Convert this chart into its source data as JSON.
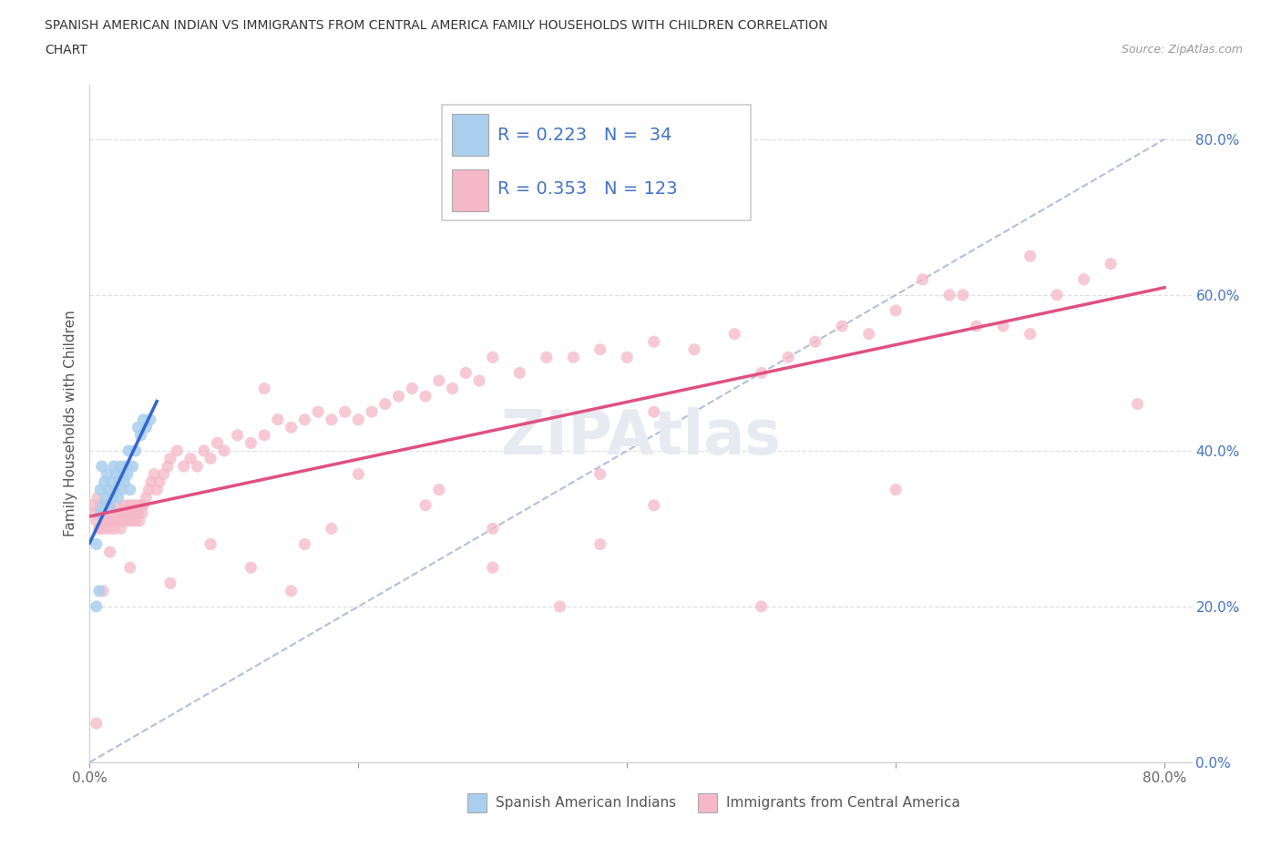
{
  "title_line1": "SPANISH AMERICAN INDIAN VS IMMIGRANTS FROM CENTRAL AMERICA FAMILY HOUSEHOLDS WITH CHILDREN CORRELATION",
  "title_line2": "CHART",
  "source": "Source: ZipAtlas.com",
  "ylabel": "Family Households with Children",
  "xlabel_blue": "Spanish American Indians",
  "xlabel_pink": "Immigrants from Central America",
  "R_blue": 0.223,
  "N_blue": 34,
  "R_pink": 0.353,
  "N_pink": 123,
  "blue_scatter_color": "#aacfee",
  "blue_line_color": "#3366cc",
  "pink_scatter_color": "#f5b8c8",
  "pink_line_color": "#e05080",
  "dashed_line_color": "#aab8d8",
  "tick_color_y": "#4472C4",
  "tick_color_x": "#666666",
  "grid_color": "#e0e0e0",
  "background": "#ffffff",
  "watermark": "ZIPAtlas",
  "watermark_color": "#e8eaf2",
  "blue_x": [
    0.005,
    0.007,
    0.008,
    0.009,
    0.01,
    0.011,
    0.012,
    0.013,
    0.014,
    0.015,
    0.016,
    0.017,
    0.018,
    0.019,
    0.02,
    0.021,
    0.022,
    0.023,
    0.024,
    0.025,
    0.026,
    0.027,
    0.028,
    0.029,
    0.03,
    0.032,
    0.034,
    0.036,
    0.038,
    0.04,
    0.042,
    0.045,
    0.005,
    0.008
  ],
  "blue_y": [
    0.2,
    0.22,
    0.35,
    0.38,
    0.33,
    0.36,
    0.34,
    0.37,
    0.35,
    0.33,
    0.36,
    0.34,
    0.38,
    0.35,
    0.37,
    0.34,
    0.36,
    0.38,
    0.35,
    0.37,
    0.36,
    0.38,
    0.37,
    0.4,
    0.35,
    0.38,
    0.4,
    0.43,
    0.42,
    0.44,
    0.43,
    0.44,
    0.28,
    0.32
  ],
  "pink_x": [
    0.002,
    0.004,
    0.005,
    0.006,
    0.007,
    0.008,
    0.009,
    0.01,
    0.011,
    0.012,
    0.013,
    0.014,
    0.015,
    0.016,
    0.017,
    0.018,
    0.019,
    0.02,
    0.021,
    0.022,
    0.023,
    0.024,
    0.025,
    0.026,
    0.027,
    0.028,
    0.029,
    0.03,
    0.031,
    0.032,
    0.033,
    0.034,
    0.035,
    0.036,
    0.037,
    0.038,
    0.039,
    0.04,
    0.042,
    0.044,
    0.046,
    0.048,
    0.05,
    0.052,
    0.055,
    0.058,
    0.06,
    0.065,
    0.07,
    0.075,
    0.08,
    0.085,
    0.09,
    0.095,
    0.1,
    0.11,
    0.12,
    0.13,
    0.14,
    0.15,
    0.16,
    0.17,
    0.18,
    0.19,
    0.2,
    0.21,
    0.22,
    0.23,
    0.24,
    0.25,
    0.26,
    0.27,
    0.28,
    0.29,
    0.3,
    0.32,
    0.34,
    0.36,
    0.38,
    0.4,
    0.42,
    0.45,
    0.48,
    0.5,
    0.52,
    0.54,
    0.56,
    0.58,
    0.6,
    0.62,
    0.64,
    0.66,
    0.68,
    0.7,
    0.72,
    0.74,
    0.76,
    0.78,
    0.5,
    0.38,
    0.3,
    0.42,
    0.35,
    0.26,
    0.18,
    0.15,
    0.12,
    0.09,
    0.06,
    0.03,
    0.015,
    0.01,
    0.005,
    0.6,
    0.65,
    0.7,
    0.42,
    0.38,
    0.3,
    0.25,
    0.2,
    0.16,
    0.13
  ],
  "pink_y": [
    0.33,
    0.32,
    0.31,
    0.34,
    0.3,
    0.33,
    0.32,
    0.3,
    0.31,
    0.33,
    0.31,
    0.3,
    0.33,
    0.31,
    0.32,
    0.3,
    0.31,
    0.33,
    0.32,
    0.31,
    0.3,
    0.32,
    0.31,
    0.33,
    0.32,
    0.31,
    0.33,
    0.32,
    0.31,
    0.33,
    0.32,
    0.31,
    0.33,
    0.32,
    0.31,
    0.33,
    0.32,
    0.33,
    0.34,
    0.35,
    0.36,
    0.37,
    0.35,
    0.36,
    0.37,
    0.38,
    0.39,
    0.4,
    0.38,
    0.39,
    0.38,
    0.4,
    0.39,
    0.41,
    0.4,
    0.42,
    0.41,
    0.42,
    0.44,
    0.43,
    0.44,
    0.45,
    0.44,
    0.45,
    0.44,
    0.45,
    0.46,
    0.47,
    0.48,
    0.47,
    0.49,
    0.48,
    0.5,
    0.49,
    0.52,
    0.5,
    0.52,
    0.52,
    0.53,
    0.52,
    0.54,
    0.53,
    0.55,
    0.5,
    0.52,
    0.54,
    0.56,
    0.55,
    0.58,
    0.62,
    0.6,
    0.56,
    0.56,
    0.55,
    0.6,
    0.62,
    0.64,
    0.46,
    0.2,
    0.28,
    0.3,
    0.33,
    0.2,
    0.35,
    0.3,
    0.22,
    0.25,
    0.28,
    0.23,
    0.25,
    0.27,
    0.22,
    0.05,
    0.35,
    0.6,
    0.65,
    0.45,
    0.37,
    0.25,
    0.33,
    0.37,
    0.28,
    0.48
  ]
}
